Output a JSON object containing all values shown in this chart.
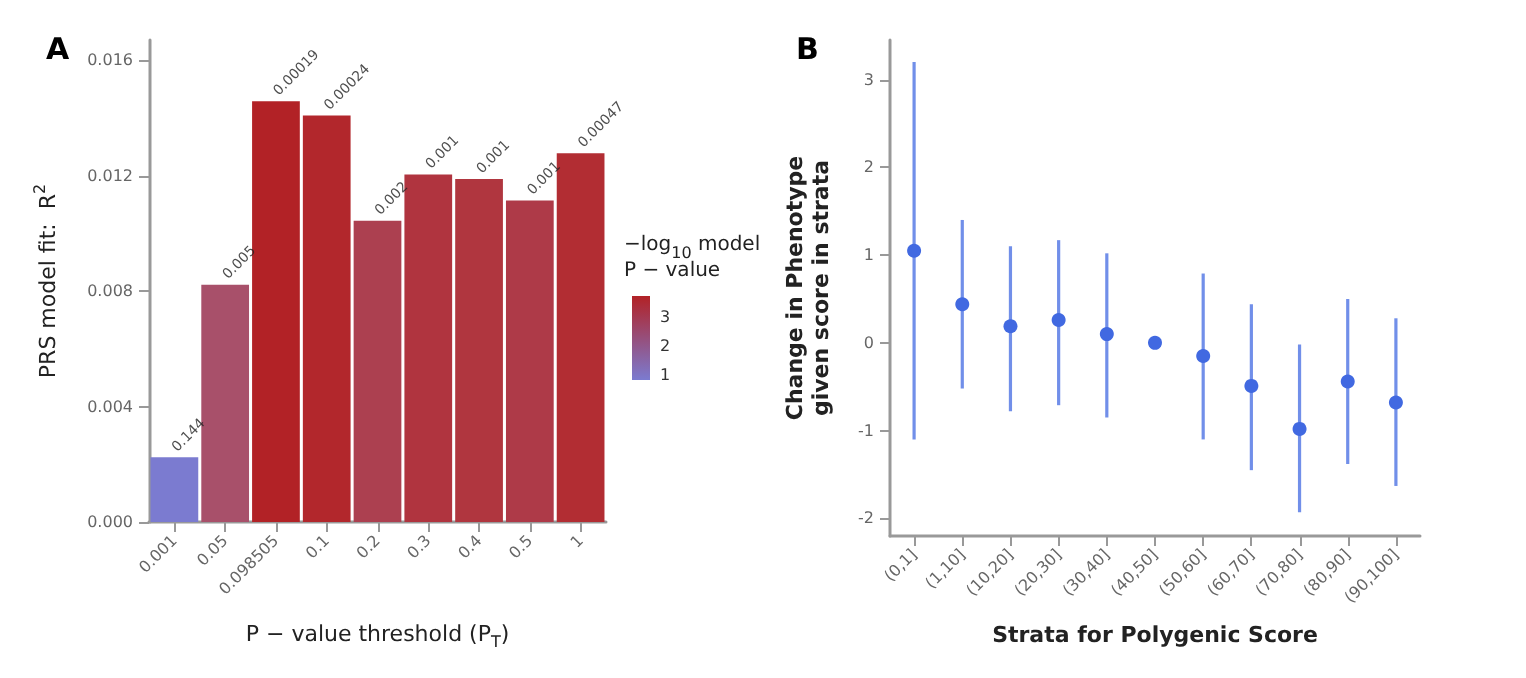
{
  "chart_data": [
    {
      "type": "bar",
      "title": "A",
      "xlabel": "P − value threshold (P$_{T}$)",
      "ylabel": "PRS model fit:  R$^{2}$",
      "clabel": "−log$_{10}$ model\nP − value",
      "categories": [
        "0.001",
        "0.05",
        "0.098505",
        "0.1",
        "0.2",
        "0.3",
        "0.4",
        "0.5",
        "1"
      ],
      "values": [
        0.00224,
        0.00822,
        0.01458,
        0.01408,
        0.01044,
        0.01204,
        0.01188,
        0.01114,
        0.01278
      ],
      "colors": [
        "#7b7bd0",
        "#a8506a",
        "#b22226",
        "#b2272c",
        "#ac4050",
        "#b0343f",
        "#b0363f",
        "#ae3a48",
        "#b22d33"
      ],
      "annotations": [
        {
          "text": "0.144",
          "x": "0.001",
          "y": 0.00224
        },
        {
          "text": "0.005",
          "x": "0.05",
          "y": 0.00822
        },
        {
          "text": "0.00019",
          "x": "0.098505",
          "y": 0.01458
        },
        {
          "text": "0.00024",
          "x": "0.1",
          "y": 0.01408
        },
        {
          "text": "0.002",
          "x": "0.2",
          "y": 0.01044
        },
        {
          "text": "0.001",
          "x": "0.3",
          "y": 0.01204
        },
        {
          "text": "0.001",
          "x": "0.4",
          "y": 0.01188
        },
        {
          "text": "0.001",
          "x": "0.5",
          "y": 0.01114
        },
        {
          "text": "0.00047",
          "x": "1",
          "y": 0.01278
        }
      ],
      "ylim": [
        0,
        0.0167
      ],
      "yticks": [
        {
          "value": 0,
          "label": "0.000"
        },
        {
          "value": 0.004,
          "label": "0.004"
        },
        {
          "value": 0.008,
          "label": "0.008"
        },
        {
          "value": 0.012,
          "label": "0.012"
        },
        {
          "value": 0.016,
          "label": "0.016"
        }
      ],
      "clim": [
        0.84,
        3.72
      ],
      "cticks": [
        1,
        2,
        3
      ],
      "grid": false
    },
    {
      "type": "scatter",
      "title": "B",
      "xlabel": "Strata for Polygenic Score",
      "ylabel": "Change in Phenotype\ngiven score in strata",
      "categories": [
        "(0,1]",
        "(1,10]",
        "(10,20]",
        "(20,30]",
        "(30,40]",
        "(40,50]",
        "(50,60]",
        "(60,70]",
        "(70,80]",
        "(80,90]",
        "(90,100]"
      ],
      "series": [
        {
          "color": "#4169e1",
          "values": [
            1.05,
            0.44,
            0.19,
            0.26,
            0.1,
            0,
            -0.15,
            -0.49,
            -0.98,
            -0.44,
            -0.68
          ],
          "errors": [
            [
              -1.1,
              3.2
            ],
            [
              -0.52,
              1.4
            ],
            [
              -0.78,
              1.1
            ],
            [
              -0.71,
              1.17
            ],
            [
              -0.85,
              1.02
            ],
            null,
            [
              -1.1,
              0.79
            ],
            [
              -1.45,
              0.44
            ],
            [
              -1.93,
              -0.02
            ],
            [
              -1.38,
              0.5
            ],
            [
              -1.63,
              0.28
            ]
          ]
        }
      ],
      "ylim": [
        -2.2,
        3.45
      ],
      "yticks": [
        -2,
        -1,
        0,
        1,
        2,
        3
      ],
      "marker": "circle",
      "grid": false
    }
  ]
}
